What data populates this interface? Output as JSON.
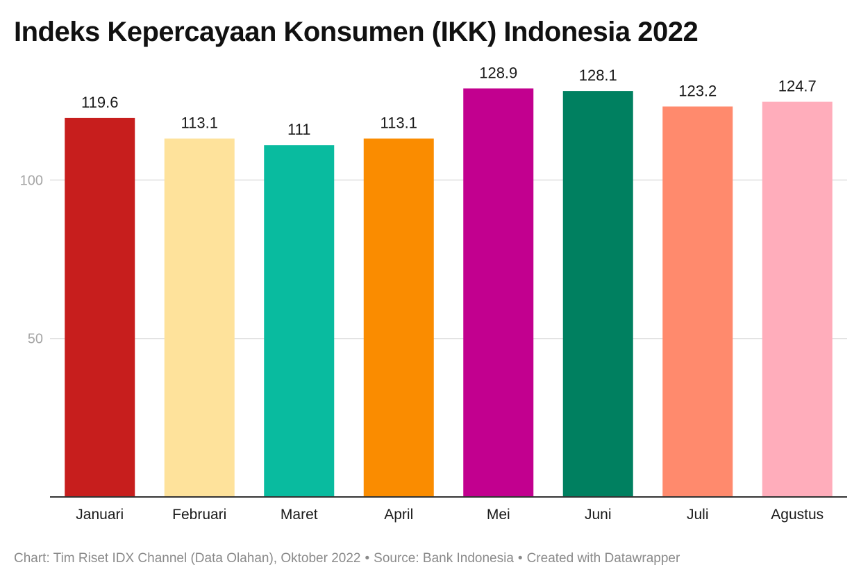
{
  "chart_data": {
    "type": "bar",
    "title": "Indeks Kepercayaan Konsumen (IKK) Indonesia 2022",
    "categories": [
      "Januari",
      "Februari",
      "Maret",
      "April",
      "Mei",
      "Juni",
      "Juli",
      "Agustus"
    ],
    "values": [
      119.6,
      113.1,
      111,
      113.1,
      128.9,
      128.1,
      123.2,
      124.7
    ],
    "value_labels": [
      "119.6",
      "113.1",
      "111",
      "113.1",
      "128.9",
      "128.1",
      "123.2",
      "124.7"
    ],
    "colors": [
      "#c71e1d",
      "#fee29b",
      "#09bb9f",
      "#fa8c00",
      "#c2008f",
      "#008060",
      "#ff8a6d",
      "#ffadbb"
    ],
    "y_ticks": [
      {
        "value": 50,
        "label": "50"
      },
      {
        "value": 100,
        "label": "100"
      }
    ],
    "ylim": [
      0,
      130
    ],
    "grid": true,
    "xlabel": "",
    "ylabel": ""
  },
  "footer": {
    "chart_credit": "Chart: Tim Riset IDX Channel (Data Olahan), Oktober 2022",
    "separator": "•",
    "source": "Source: Bank Indonesia",
    "created_with": "Created with Datawrapper"
  },
  "colors": {
    "title": "#111111",
    "gridline": "#e0e0e0",
    "tick_label": "#a6a6a6",
    "baseline": "#333333",
    "footer": "#8a8a8a"
  }
}
